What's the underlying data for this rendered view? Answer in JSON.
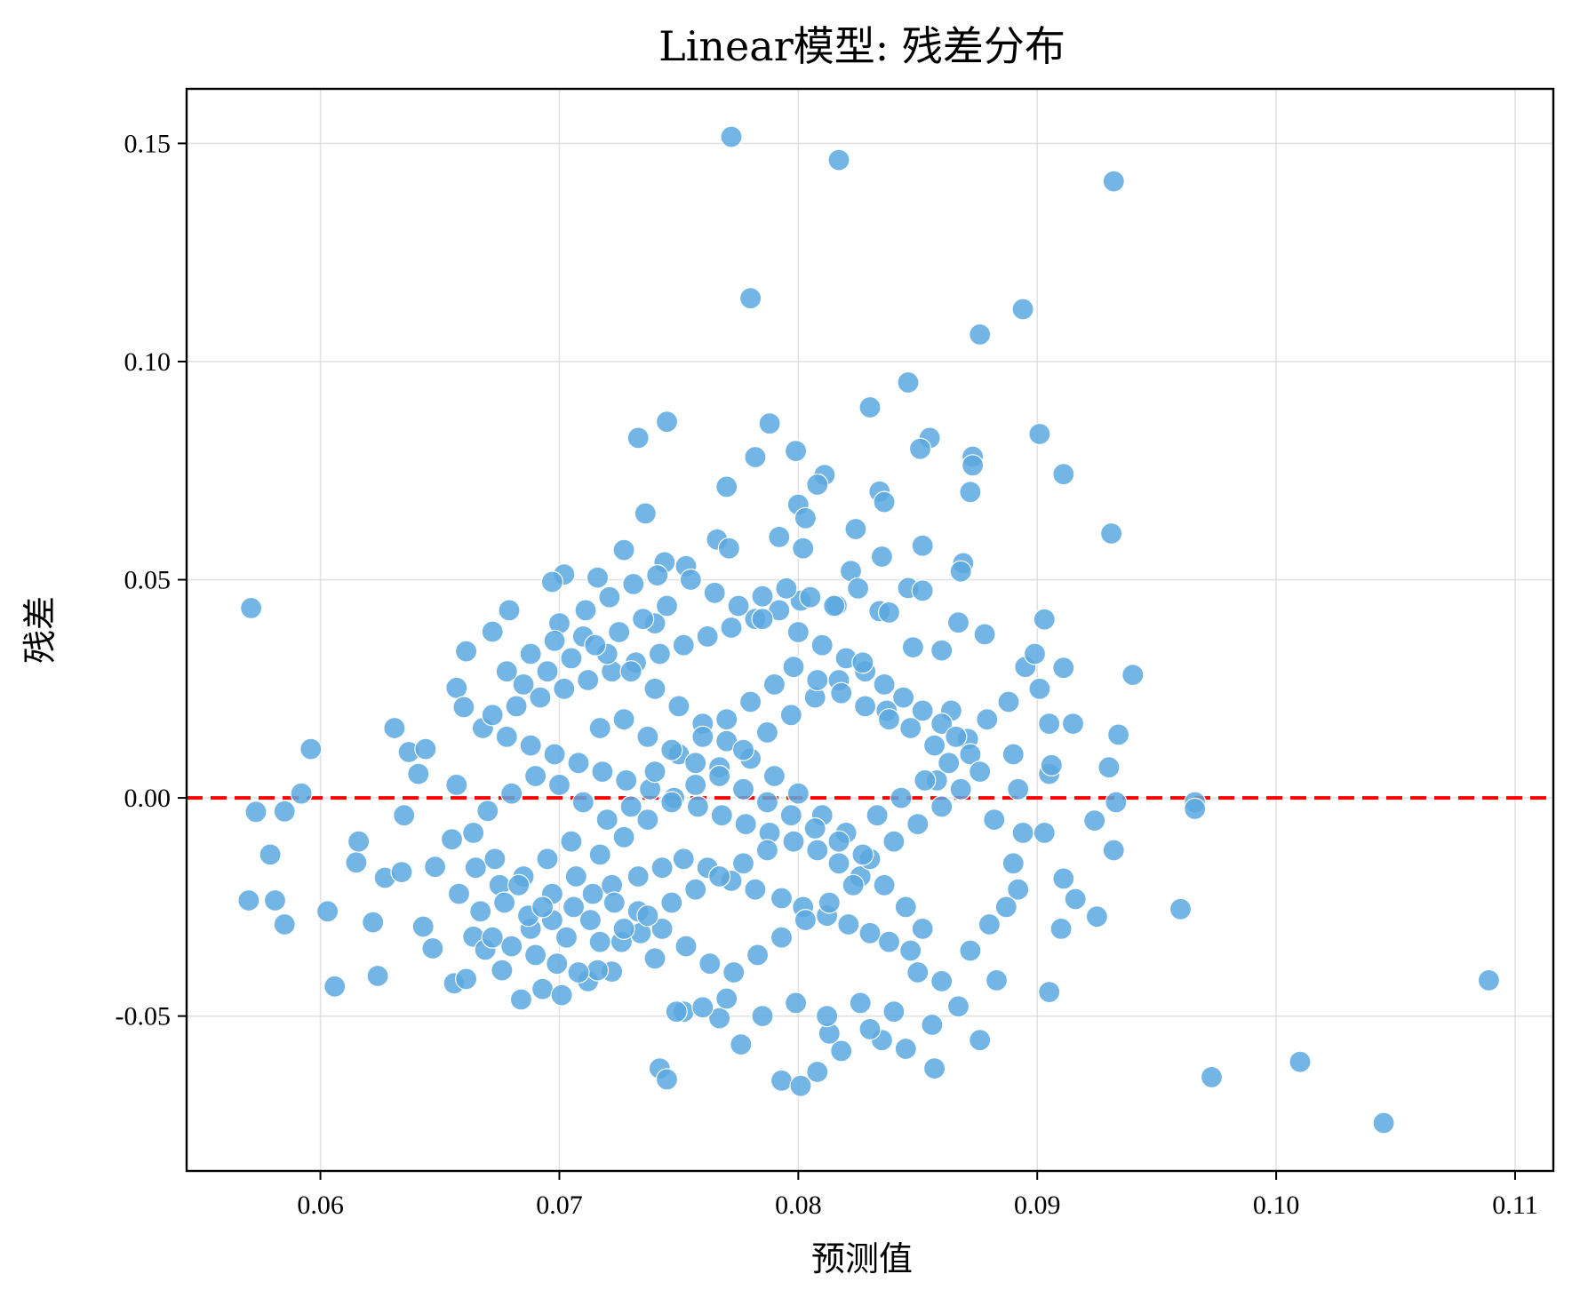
{
  "chart_data": {
    "type": "scatter",
    "title": "Linear模型: 残差分布",
    "xlabel": "预测值",
    "ylabel": "残差",
    "xlim": [
      0.0544,
      0.1116
    ],
    "ylim": [
      -0.0855,
      0.1625
    ],
    "xticks": [
      0.06,
      0.07,
      0.08,
      0.09,
      0.1,
      0.11
    ],
    "xtick_labels": [
      "0.06",
      "0.07",
      "0.08",
      "0.09",
      "0.10",
      "0.11"
    ],
    "yticks": [
      -0.05,
      0.0,
      0.05,
      0.1,
      0.15
    ],
    "ytick_labels": [
      "-0.05",
      "0.00",
      "0.05",
      "0.10",
      "0.15"
    ],
    "grid": true,
    "reference_line": {
      "y": 0.0,
      "style": "dashed",
      "color": "#ff0000"
    },
    "marker_color": "#5aa8e0",
    "points": [
      [
        0.0772,
        0.1515
      ],
      [
        0.0817,
        0.1462
      ],
      [
        0.0932,
        0.1413
      ],
      [
        0.078,
        0.1145
      ],
      [
        0.0894,
        0.112
      ],
      [
        0.0876,
        0.1062
      ],
      [
        0.0846,
        0.0952
      ],
      [
        0.083,
        0.0895
      ],
      [
        0.0745,
        0.0862
      ],
      [
        0.0788,
        0.0858
      ],
      [
        0.0733,
        0.0825
      ],
      [
        0.0901,
        0.0834
      ],
      [
        0.0855,
        0.0825
      ],
      [
        0.0851,
        0.08
      ],
      [
        0.0799,
        0.0795
      ],
      [
        0.0873,
        0.0782
      ],
      [
        0.0782,
        0.0781
      ],
      [
        0.0873,
        0.0762
      ],
      [
        0.0911,
        0.0742
      ],
      [
        0.0811,
        0.074
      ],
      [
        0.0808,
        0.0718
      ],
      [
        0.077,
        0.0713
      ],
      [
        0.0834,
        0.0702
      ],
      [
        0.0872,
        0.0701
      ],
      [
        0.0836,
        0.0678
      ],
      [
        0.08,
        0.0672
      ],
      [
        0.0736,
        0.0652
      ],
      [
        0.0803,
        0.0641
      ],
      [
        0.0931,
        0.0606
      ],
      [
        0.0824,
        0.0616
      ],
      [
        0.0792,
        0.0598
      ],
      [
        0.0766,
        0.0592
      ],
      [
        0.0852,
        0.0578
      ],
      [
        0.0802,
        0.0572
      ],
      [
        0.0771,
        0.0572
      ],
      [
        0.0727,
        0.0568
      ],
      [
        0.0744,
        0.054
      ],
      [
        0.0869,
        0.0538
      ],
      [
        0.0868,
        0.0519
      ],
      [
        0.0753,
        0.0531
      ],
      [
        0.0702,
        0.0512
      ],
      [
        0.0716,
        0.0505
      ],
      [
        0.0697,
        0.0495
      ],
      [
        0.0835,
        0.0553
      ],
      [
        0.0822,
        0.052
      ],
      [
        0.0801,
        0.0452
      ],
      [
        0.0816,
        0.0441
      ],
      [
        0.0846,
        0.0481
      ],
      [
        0.0852,
        0.0475
      ],
      [
        0.0785,
        0.0462
      ],
      [
        0.074,
        0.04
      ],
      [
        0.0679,
        0.043
      ],
      [
        0.0672,
        0.0381
      ],
      [
        0.0661,
        0.0336
      ],
      [
        0.0867,
        0.0402
      ],
      [
        0.0878,
        0.0375
      ],
      [
        0.0903,
        0.0409
      ],
      [
        0.094,
        0.0282
      ],
      [
        0.0911,
        0.0298
      ],
      [
        0.086,
        0.0338
      ],
      [
        0.0848,
        0.0345
      ],
      [
        0.0834,
        0.0428
      ],
      [
        0.0838,
        0.0425
      ],
      [
        0.0657,
        0.0252
      ],
      [
        0.066,
        0.0208
      ],
      [
        0.0637,
        0.0105
      ],
      [
        0.0631,
        0.016
      ],
      [
        0.0644,
        0.0112
      ],
      [
        0.0596,
        0.0112
      ],
      [
        0.0592,
        0.001
      ],
      [
        0.0657,
        0.003
      ],
      [
        0.0571,
        0.0435
      ],
      [
        0.0573,
        -0.0032
      ],
      [
        0.0585,
        -0.0031
      ],
      [
        0.0579,
        -0.013
      ],
      [
        0.057,
        -0.0235
      ],
      [
        0.0581,
        -0.0235
      ],
      [
        0.0585,
        -0.029
      ],
      [
        0.0603,
        -0.026
      ],
      [
        0.0606,
        -0.0432
      ],
      [
        0.0624,
        -0.0408
      ],
      [
        0.0622,
        -0.0285
      ],
      [
        0.0627,
        -0.0183
      ],
      [
        0.0616,
        -0.01
      ],
      [
        0.0615,
        -0.0148
      ],
      [
        0.0634,
        -0.017
      ],
      [
        0.0635,
        -0.004
      ],
      [
        0.0641,
        0.0055
      ],
      [
        0.0648,
        -0.0158
      ],
      [
        0.0643,
        -0.0295
      ],
      [
        0.0647,
        -0.0345
      ],
      [
        0.0655,
        -0.0095
      ],
      [
        0.0656,
        -0.0425
      ],
      [
        0.0661,
        -0.0415
      ],
      [
        0.0664,
        -0.0318
      ],
      [
        0.0669,
        -0.0348
      ],
      [
        0.0684,
        -0.0462
      ],
      [
        0.0693,
        -0.0438
      ],
      [
        0.0701,
        -0.0452
      ],
      [
        0.0712,
        -0.042
      ],
      [
        0.0722,
        -0.0398
      ],
      [
        0.074,
        -0.0368
      ],
      [
        0.0742,
        -0.062
      ],
      [
        0.0745,
        -0.0645
      ],
      [
        0.0752,
        -0.049
      ],
      [
        0.0767,
        -0.0505
      ],
      [
        0.0776,
        -0.0565
      ],
      [
        0.0793,
        -0.0648
      ],
      [
        0.0801,
        -0.066
      ],
      [
        0.0808,
        -0.0628
      ],
      [
        0.0818,
        -0.058
      ],
      [
        0.0835,
        -0.0555
      ],
      [
        0.0845,
        -0.0575
      ],
      [
        0.0857,
        -0.062
      ],
      [
        0.0876,
        -0.0555
      ],
      [
        0.0867,
        -0.0478
      ],
      [
        0.0883,
        -0.0418
      ],
      [
        0.0905,
        -0.0445
      ],
      [
        0.091,
        -0.03
      ],
      [
        0.0925,
        -0.0272
      ],
      [
        0.0916,
        -0.0232
      ],
      [
        0.0911,
        -0.0185
      ],
      [
        0.0932,
        -0.012
      ],
      [
        0.0924,
        -0.0052
      ],
      [
        0.0933,
        -0.001
      ],
      [
        0.0903,
        -0.008
      ],
      [
        0.0966,
        -0.001
      ],
      [
        0.0966,
        -0.0025
      ],
      [
        0.096,
        -0.0255
      ],
      [
        0.0973,
        -0.064
      ],
      [
        0.101,
        -0.0605
      ],
      [
        0.1045,
        -0.0745
      ],
      [
        0.1089,
        -0.0418
      ],
      [
        0.093,
        0.007
      ],
      [
        0.0934,
        0.0145
      ],
      [
        0.0915,
        0.017
      ],
      [
        0.0905,
        0.0055
      ],
      [
        0.0906,
        0.0075
      ],
      [
        0.089,
        0.01
      ],
      [
        0.0892,
        0.002
      ],
      [
        0.0901,
        0.025
      ],
      [
        0.0895,
        0.03
      ],
      [
        0.0899,
        0.033
      ],
      [
        0.0888,
        0.022
      ],
      [
        0.0905,
        0.017
      ],
      [
        0.0879,
        0.018
      ],
      [
        0.0871,
        0.0135
      ],
      [
        0.0864,
        0.02
      ],
      [
        0.0858,
        0.004
      ],
      [
        0.0882,
        -0.005
      ],
      [
        0.0894,
        -0.008
      ],
      [
        0.089,
        -0.015
      ],
      [
        0.0892,
        -0.021
      ],
      [
        0.0887,
        -0.025
      ],
      [
        0.088,
        -0.029
      ],
      [
        0.0872,
        -0.035
      ],
      [
        0.086,
        -0.042
      ],
      [
        0.085,
        -0.04
      ],
      [
        0.0856,
        -0.052
      ],
      [
        0.084,
        -0.049
      ],
      [
        0.0826,
        -0.047
      ],
      [
        0.083,
        -0.053
      ],
      [
        0.0813,
        -0.054
      ],
      [
        0.0812,
        -0.05
      ],
      [
        0.0799,
        -0.047
      ],
      [
        0.0785,
        -0.05
      ],
      [
        0.077,
        -0.046
      ],
      [
        0.076,
        -0.048
      ],
      [
        0.0749,
        -0.049
      ],
      [
        0.0734,
        -0.031
      ],
      [
        0.0726,
        -0.033
      ],
      [
        0.0716,
        -0.0395
      ],
      [
        0.0708,
        -0.04
      ],
      [
        0.0699,
        -0.038
      ],
      [
        0.069,
        -0.036
      ],
      [
        0.068,
        -0.034
      ],
      [
        0.0672,
        -0.032
      ],
      [
        0.0676,
        -0.0395
      ],
      [
        0.0688,
        -0.03
      ],
      [
        0.0697,
        -0.028
      ],
      [
        0.0706,
        -0.025
      ],
      [
        0.0714,
        -0.022
      ],
      [
        0.0722,
        -0.02
      ],
      [
        0.0733,
        -0.018
      ],
      [
        0.0743,
        -0.016
      ],
      [
        0.0752,
        -0.014
      ],
      [
        0.0762,
        -0.016
      ],
      [
        0.0772,
        -0.019
      ],
      [
        0.0782,
        -0.021
      ],
      [
        0.0793,
        -0.023
      ],
      [
        0.0802,
        -0.025
      ],
      [
        0.0812,
        -0.027
      ],
      [
        0.0821,
        -0.029
      ],
      [
        0.083,
        -0.031
      ],
      [
        0.0838,
        -0.033
      ],
      [
        0.0847,
        -0.035
      ],
      [
        0.0852,
        -0.03
      ],
      [
        0.0845,
        -0.025
      ],
      [
        0.0836,
        -0.02
      ],
      [
        0.0826,
        -0.018
      ],
      [
        0.0817,
        -0.015
      ],
      [
        0.0808,
        -0.012
      ],
      [
        0.0798,
        -0.01
      ],
      [
        0.0788,
        -0.008
      ],
      [
        0.0778,
        -0.006
      ],
      [
        0.0768,
        -0.004
      ],
      [
        0.0758,
        -0.002
      ],
      [
        0.0748,
        0.0
      ],
      [
        0.0738,
        0.002
      ],
      [
        0.0728,
        0.004
      ],
      [
        0.0718,
        0.006
      ],
      [
        0.0708,
        0.008
      ],
      [
        0.0698,
        0.01
      ],
      [
        0.0688,
        0.012
      ],
      [
        0.0678,
        0.014
      ],
      [
        0.0668,
        0.016
      ],
      [
        0.0672,
        0.019
      ],
      [
        0.0682,
        0.021
      ],
      [
        0.0692,
        0.023
      ],
      [
        0.0702,
        0.025
      ],
      [
        0.0712,
        0.027
      ],
      [
        0.0722,
        0.029
      ],
      [
        0.0732,
        0.031
      ],
      [
        0.0742,
        0.033
      ],
      [
        0.0752,
        0.035
      ],
      [
        0.0762,
        0.037
      ],
      [
        0.0772,
        0.039
      ],
      [
        0.0782,
        0.041
      ],
      [
        0.0792,
        0.043
      ],
      [
        0.08,
        0.038
      ],
      [
        0.081,
        0.035
      ],
      [
        0.082,
        0.032
      ],
      [
        0.0828,
        0.029
      ],
      [
        0.0836,
        0.026
      ],
      [
        0.0844,
        0.023
      ],
      [
        0.0852,
        0.02
      ],
      [
        0.086,
        0.017
      ],
      [
        0.0866,
        0.014
      ],
      [
        0.0872,
        0.01
      ],
      [
        0.0876,
        0.006
      ],
      [
        0.0868,
        0.002
      ],
      [
        0.086,
        -0.002
      ],
      [
        0.085,
        -0.006
      ],
      [
        0.084,
        -0.01
      ],
      [
        0.083,
        -0.014
      ],
      [
        0.082,
        -0.008
      ],
      [
        0.081,
        -0.004
      ],
      [
        0.08,
        0.001
      ],
      [
        0.079,
        0.005
      ],
      [
        0.078,
        0.009
      ],
      [
        0.077,
        0.013
      ],
      [
        0.076,
        0.017
      ],
      [
        0.075,
        0.021
      ],
      [
        0.074,
        0.025
      ],
      [
        0.073,
        0.029
      ],
      [
        0.072,
        0.033
      ],
      [
        0.071,
        0.037
      ],
      [
        0.07,
        0.04
      ],
      [
        0.0711,
        0.043
      ],
      [
        0.0721,
        0.046
      ],
      [
        0.0731,
        0.049
      ],
      [
        0.0741,
        0.051
      ],
      [
        0.0755,
        0.05
      ],
      [
        0.0765,
        0.047
      ],
      [
        0.0775,
        0.044
      ],
      [
        0.0785,
        0.041
      ],
      [
        0.0795,
        0.048
      ],
      [
        0.0805,
        0.046
      ],
      [
        0.0815,
        0.044
      ],
      [
        0.0825,
        0.048
      ],
      [
        0.0705,
        -0.01
      ],
      [
        0.0695,
        -0.014
      ],
      [
        0.0685,
        -0.018
      ],
      [
        0.0675,
        -0.02
      ],
      [
        0.0665,
        -0.016
      ],
      [
        0.0658,
        -0.022
      ],
      [
        0.0667,
        -0.026
      ],
      [
        0.0677,
        -0.024
      ],
      [
        0.0687,
        -0.027
      ],
      [
        0.0697,
        -0.022
      ],
      [
        0.0707,
        -0.018
      ],
      [
        0.0717,
        -0.013
      ],
      [
        0.0727,
        -0.009
      ],
      [
        0.0737,
        -0.005
      ],
      [
        0.0747,
        -0.001
      ],
      [
        0.0757,
        0.003
      ],
      [
        0.0767,
        0.007
      ],
      [
        0.0777,
        0.011
      ],
      [
        0.0787,
        0.015
      ],
      [
        0.0797,
        0.019
      ],
      [
        0.0807,
        0.023
      ],
      [
        0.0817,
        0.027
      ],
      [
        0.0827,
        0.031
      ],
      [
        0.0837,
        0.02
      ],
      [
        0.0847,
        0.016
      ],
      [
        0.0857,
        0.012
      ],
      [
        0.0863,
        0.008
      ],
      [
        0.0853,
        0.004
      ],
      [
        0.0843,
        0.0
      ],
      [
        0.0833,
        -0.004
      ],
      [
        0.0823,
        -0.02
      ],
      [
        0.0813,
        -0.024
      ],
      [
        0.0803,
        -0.028
      ],
      [
        0.0793,
        -0.032
      ],
      [
        0.0783,
        -0.036
      ],
      [
        0.0773,
        -0.04
      ],
      [
        0.0763,
        -0.038
      ],
      [
        0.0753,
        -0.034
      ],
      [
        0.0743,
        -0.03
      ],
      [
        0.0733,
        -0.026
      ],
      [
        0.0723,
        -0.024
      ],
      [
        0.0713,
        -0.028
      ],
      [
        0.0703,
        -0.032
      ],
      [
        0.0693,
        -0.025
      ],
      [
        0.0683,
        -0.02
      ],
      [
        0.0673,
        -0.014
      ],
      [
        0.0664,
        -0.008
      ],
      [
        0.067,
        -0.003
      ],
      [
        0.068,
        0.001
      ],
      [
        0.069,
        0.005
      ],
      [
        0.07,
        0.003
      ],
      [
        0.071,
        -0.001
      ],
      [
        0.072,
        -0.005
      ],
      [
        0.073,
        -0.002
      ],
      [
        0.074,
        0.006
      ],
      [
        0.075,
        0.01
      ],
      [
        0.076,
        0.014
      ],
      [
        0.077,
        0.018
      ],
      [
        0.078,
        0.022
      ],
      [
        0.079,
        0.026
      ],
      [
        0.0798,
        0.03
      ],
      [
        0.0808,
        0.027
      ],
      [
        0.0818,
        0.024
      ],
      [
        0.0828,
        0.021
      ],
      [
        0.0838,
        0.018
      ],
      [
        0.0745,
        0.044
      ],
      [
        0.0735,
        0.041
      ],
      [
        0.0725,
        0.038
      ],
      [
        0.0715,
        0.035
      ],
      [
        0.0705,
        0.032
      ],
      [
        0.0695,
        0.029
      ],
      [
        0.0685,
        0.026
      ],
      [
        0.0678,
        0.029
      ],
      [
        0.0688,
        0.033
      ],
      [
        0.0698,
        0.036
      ],
      [
        0.0717,
        0.016
      ],
      [
        0.0727,
        0.018
      ],
      [
        0.0737,
        0.014
      ],
      [
        0.0747,
        0.011
      ],
      [
        0.0757,
        0.008
      ],
      [
        0.0767,
        0.005
      ],
      [
        0.0777,
        0.002
      ],
      [
        0.0787,
        -0.001
      ],
      [
        0.0797,
        -0.004
      ],
      [
        0.0807,
        -0.007
      ],
      [
        0.0817,
        -0.01
      ],
      [
        0.0827,
        -0.013
      ],
      [
        0.0787,
        -0.012
      ],
      [
        0.0777,
        -0.015
      ],
      [
        0.0767,
        -0.018
      ],
      [
        0.0757,
        -0.021
      ],
      [
        0.0747,
        -0.024
      ],
      [
        0.0737,
        -0.027
      ],
      [
        0.0727,
        -0.03
      ],
      [
        0.0717,
        -0.033
      ]
    ]
  }
}
